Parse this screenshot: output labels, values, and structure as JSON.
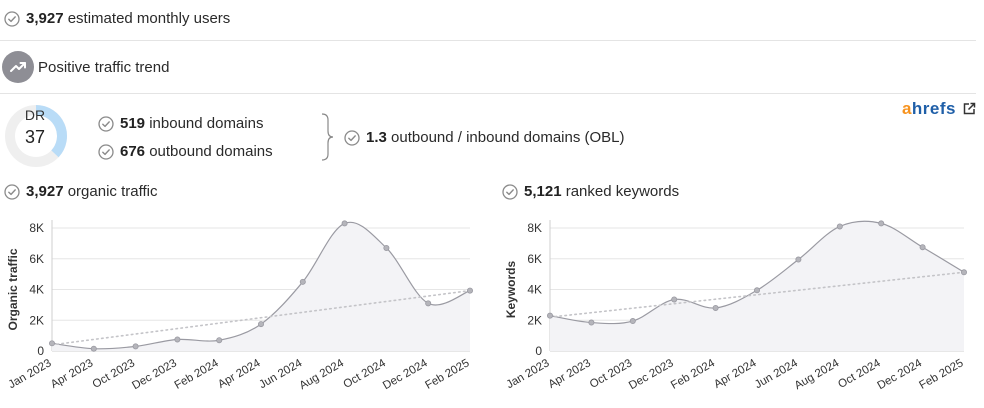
{
  "summary": {
    "users_value": "3,927",
    "users_label": "estimated monthly users"
  },
  "trend": {
    "label": "Positive traffic trend",
    "icon": "trending-up-icon"
  },
  "domain_rating": {
    "label": "DR",
    "value": "37",
    "fill": 0.37
  },
  "domains": {
    "inbound_value": "519",
    "inbound_label": "inbound domains",
    "outbound_value": "676",
    "outbound_label": "outbound domains",
    "obl_value": "1.3",
    "obl_label": "outbound / inbound domains (OBL)"
  },
  "brand": {
    "prefix": "a",
    "rest": "hrefs",
    "link_icon": "external-link-icon"
  },
  "charts_header": {
    "traffic_value": "3,927",
    "traffic_label": "organic traffic",
    "keywords_value": "5,121",
    "keywords_label": "ranked keywords"
  },
  "colors": {
    "accent": "#1f5fa8",
    "brand_orange": "#f7931e",
    "dr_ring": "#b9dcf7",
    "line": "#9a9aa2"
  },
  "chart_data": [
    {
      "type": "area",
      "ylabel": "Organic traffic",
      "ylim": [
        0,
        8000
      ],
      "yticks": [
        0,
        2000,
        4000,
        6000,
        8000
      ],
      "ytick_labels": [
        "0",
        "2K",
        "4K",
        "6K",
        "8K"
      ],
      "grid": true,
      "categories": [
        "Jan 2023",
        "Apr 2023",
        "Oct 2023",
        "Dec 2023",
        "Feb 2024",
        "Apr 2024",
        "Jun 2024",
        "Aug 2024",
        "Oct 2024",
        "Dec 2024",
        "Feb 2025"
      ],
      "values": [
        500,
        150,
        300,
        750,
        700,
        1750,
        4500,
        8300,
        6700,
        3100,
        3927
      ],
      "trendline": [
        400,
        3927
      ]
    },
    {
      "type": "area",
      "ylabel": "Keywords",
      "ylim": [
        0,
        8000
      ],
      "yticks": [
        0,
        2000,
        4000,
        6000,
        8000
      ],
      "ytick_labels": [
        "0",
        "2K",
        "4K",
        "6K",
        "8K"
      ],
      "grid": true,
      "categories": [
        "Jan 2023",
        "Apr 2023",
        "Oct 2023",
        "Dec 2023",
        "Feb 2024",
        "Apr 2024",
        "Jun 2024",
        "Aug 2024",
        "Oct 2024",
        "Dec 2024",
        "Feb 2025"
      ],
      "values": [
        2300,
        1850,
        1950,
        3350,
        2800,
        3950,
        5950,
        8100,
        8300,
        6750,
        5121
      ],
      "trendline": [
        2200,
        5121
      ]
    }
  ]
}
